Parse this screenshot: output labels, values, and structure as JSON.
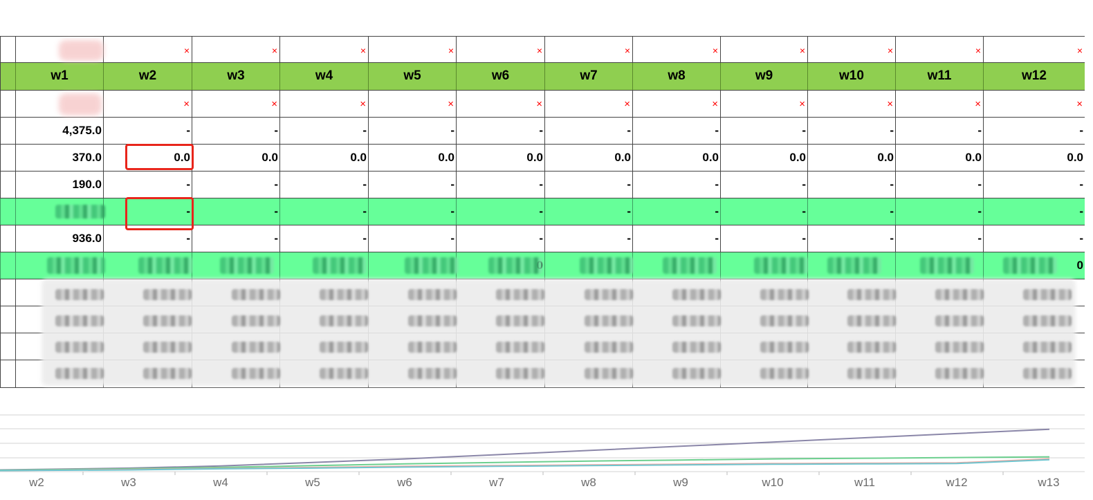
{
  "table": {
    "columns": [
      "w1",
      "w2",
      "w3",
      "w4",
      "w5",
      "w6",
      "w7",
      "w8",
      "w9",
      "w10",
      "w11",
      "w12"
    ],
    "error_marker": "×",
    "rows": [
      {
        "type": "values",
        "cells": [
          "4,375.0",
          "-",
          "-",
          "-",
          "-",
          "-",
          "-",
          "-",
          "-",
          "-",
          "-",
          "-"
        ]
      },
      {
        "type": "values",
        "cells": [
          "370.0",
          "0.0",
          "0.0",
          "0.0",
          "0.0",
          "0.0",
          "0.0",
          "0.0",
          "0.0",
          "0.0",
          "0.0",
          "0.0"
        ]
      },
      {
        "type": "values",
        "cells": [
          "190.0",
          "-",
          "-",
          "-",
          "-",
          "-",
          "-",
          "-",
          "-",
          "-",
          "-",
          "-"
        ]
      },
      {
        "type": "green",
        "cells": [
          "",
          "-",
          "-",
          "-",
          "-",
          "-",
          "-",
          "-",
          "-",
          "-",
          "-",
          "-"
        ]
      },
      {
        "type": "values",
        "cells": [
          "936.0",
          "-",
          "-",
          "-",
          "-",
          "-",
          "-",
          "-",
          "-",
          "-",
          "-",
          "-"
        ]
      }
    ],
    "partial_text": "0"
  },
  "chart_data": {
    "type": "line",
    "categories": [
      "w2",
      "w3",
      "w4",
      "w5",
      "w6",
      "w7",
      "w8",
      "w9",
      "w10",
      "w11",
      "w12",
      "w13"
    ],
    "series": [
      {
        "color": "#8a86a8",
        "values": [
          0.5,
          1.0,
          1.6,
          2.6,
          3.6,
          4.8,
          6.0,
          7.2,
          8.4,
          9.6,
          10.8,
          12.0
        ]
      },
      {
        "color": "#6ccf8e",
        "values": [
          0.4,
          0.8,
          1.2,
          1.7,
          2.2,
          2.6,
          3.0,
          3.3,
          3.6,
          3.8,
          4.0,
          4.2
        ]
      },
      {
        "color": "#f2a8a0",
        "values": [
          0.3,
          0.6,
          0.9,
          1.2,
          1.5,
          1.7,
          1.9,
          2.1,
          2.3,
          2.4,
          2.5,
          3.6
        ]
      },
      {
        "color": "#6fc5cf",
        "values": [
          0.3,
          0.5,
          0.8,
          1.0,
          1.3,
          1.5,
          1.7,
          1.9,
          2.1,
          2.2,
          2.3,
          3.4
        ]
      }
    ],
    "ylim": [
      0,
      20
    ],
    "grid": true
  },
  "colors": {
    "header_bg": "#8fcf50",
    "highlight_row_bg": "#66ff99",
    "annotation_box": "#e8251b",
    "error_marker": "#ff0000"
  }
}
